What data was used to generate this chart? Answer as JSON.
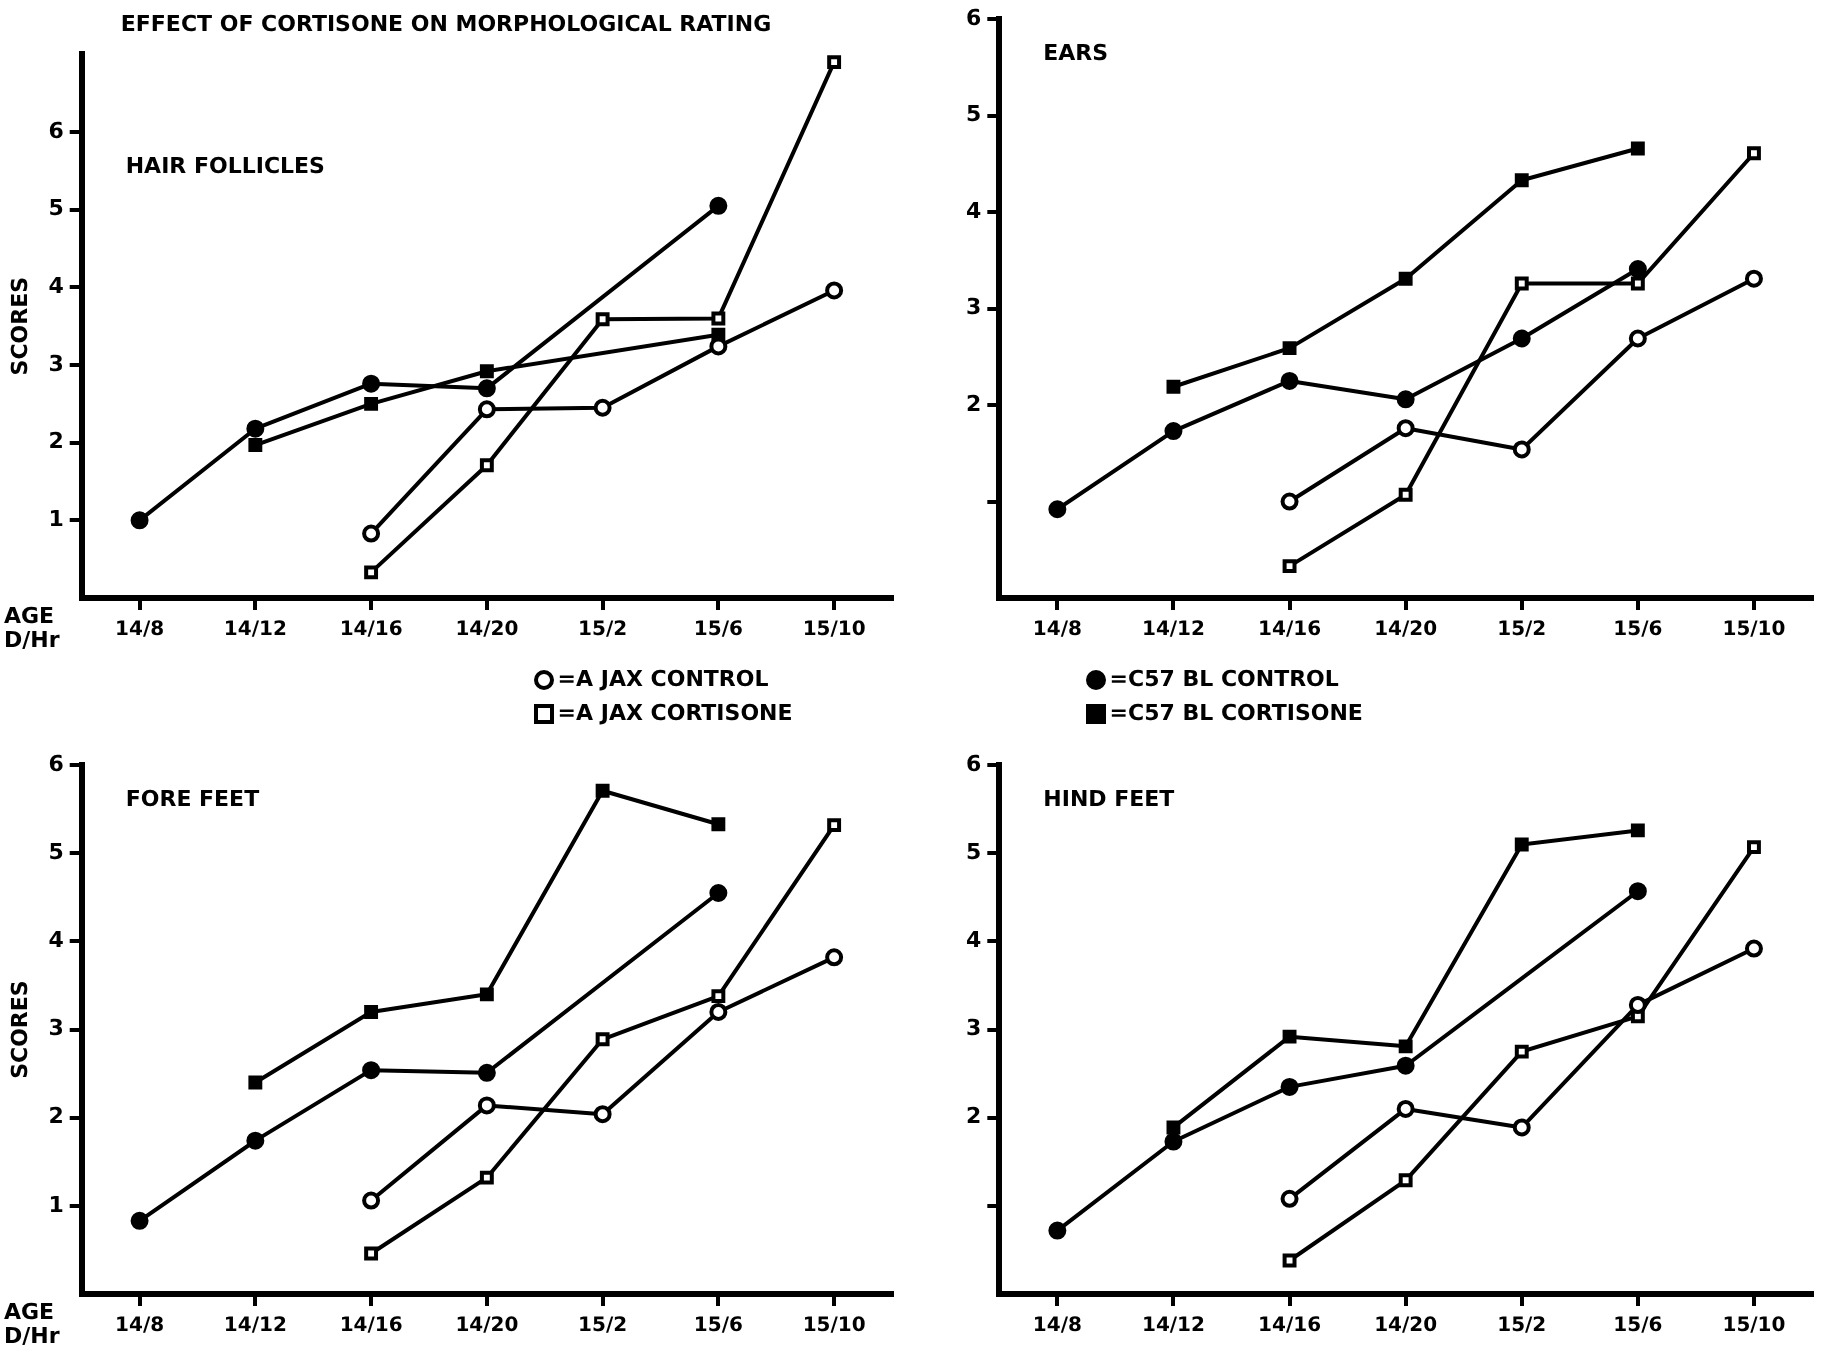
{
  "chart_data": [
    {
      "type": "line",
      "title": "EFFECT OF CORTISONE ON MORPHOLOGICAL RATING",
      "subtitle": "HAIR FOLLICLES",
      "xlabel": "AGE D/Hr",
      "ylabel": "SCORES",
      "categories": [
        "14/8",
        "14/12",
        "14/16",
        "14/20",
        "15/2",
        "15/6",
        "15/10"
      ],
      "ylim": [
        0,
        7
      ],
      "yticks": [
        1,
        2,
        3,
        4,
        5,
        6
      ],
      "grid": false,
      "legend": false,
      "series": [
        {
          "color": "#000000",
          "marker": "circle",
          "values": [
            null,
            null,
            0.83,
            2.43,
            2.45,
            3.24,
            3.96
          ]
        },
        {
          "color": "#000000",
          "marker": "square",
          "values": [
            null,
            null,
            0.33,
            1.71,
            3.59,
            3.6,
            6.9
          ]
        },
        {
          "color": "#000000",
          "marker": "circle",
          "values": [
            1.0,
            2.18,
            2.76,
            2.7,
            null,
            5.05,
            null
          ]
        },
        {
          "color": "#000000",
          "marker": "square",
          "values": [
            null,
            1.97,
            2.5,
            2.92,
            null,
            3.39,
            null
          ]
        }
      ]
    },
    {
      "type": "line",
      "subtitle": "EARS",
      "categories": [
        "14/8",
        "14/12",
        "14/16",
        "14/20",
        "15/2",
        "15/6",
        "15/10"
      ],
      "ylim": [
        0,
        6
      ],
      "yticks": [
        {
          "value": 1,
          "label": null
        },
        2,
        3,
        4,
        5,
        6
      ],
      "grid": false,
      "legend": false,
      "series": [
        {
          "color": "#000000",
          "marker": "circle",
          "values": [
            null,
            null,
            1.0,
            1.76,
            1.54,
            2.69,
            3.31
          ]
        },
        {
          "color": "#000000",
          "marker": "square",
          "values": [
            null,
            null,
            0.33,
            1.07,
            3.26,
            3.26,
            4.61
          ]
        },
        {
          "color": "#000000",
          "marker": "circle",
          "values": [
            0.92,
            1.73,
            2.25,
            2.06,
            2.69,
            3.41,
            null
          ]
        },
        {
          "color": "#000000",
          "marker": "square",
          "values": [
            null,
            2.19,
            2.59,
            3.31,
            4.33,
            4.66,
            null
          ]
        }
      ]
    },
    {
      "type": "line",
      "subtitle": "FORE FEET",
      "xlabel": "AGE D/Hr",
      "ylabel": "SCORES",
      "categories": [
        "14/8",
        "14/12",
        "14/16",
        "14/20",
        "15/2",
        "15/6",
        "15/10"
      ],
      "ylim": [
        0,
        6
      ],
      "yticks": [
        1,
        2,
        3,
        4,
        5,
        6
      ],
      "grid": false,
      "legend": "top",
      "series": [
        {
          "name": "=A JAX CONTROL",
          "color": "#000000",
          "marker": "circle",
          "values": [
            null,
            null,
            1.06,
            2.14,
            2.04,
            3.2,
            3.82
          ]
        },
        {
          "name": "=A JAX CORTISONE",
          "color": "#000000",
          "marker": "square",
          "values": [
            null,
            null,
            0.46,
            1.32,
            2.89,
            3.38,
            5.32
          ]
        },
        {
          "name": "=C57 BL CONTROL",
          "color": "#000000",
          "marker": "circle",
          "values": [
            0.83,
            1.74,
            2.54,
            2.51,
            null,
            4.55,
            null
          ]
        },
        {
          "name": "=C57 BL CORTISONE",
          "color": "#000000",
          "marker": "square",
          "values": [
            null,
            2.4,
            3.2,
            3.4,
            5.71,
            5.33,
            null
          ]
        }
      ]
    },
    {
      "type": "line",
      "subtitle": "HIND FEET",
      "categories": [
        "14/8",
        "14/12",
        "14/16",
        "14/20",
        "15/2",
        "15/6",
        "15/10"
      ],
      "ylim": [
        0,
        6
      ],
      "yticks": [
        {
          "value": 1,
          "label": null
        },
        2,
        3,
        4,
        5,
        6
      ],
      "grid": false,
      "legend": false,
      "series": [
        {
          "color": "#000000",
          "marker": "circle",
          "values": [
            null,
            null,
            1.08,
            2.1,
            1.89,
            3.28,
            3.92
          ]
        },
        {
          "color": "#000000",
          "marker": "square",
          "values": [
            null,
            null,
            0.38,
            1.29,
            2.75,
            3.15,
            5.07
          ]
        },
        {
          "color": "#000000",
          "marker": "circle",
          "values": [
            0.72,
            1.73,
            2.35,
            2.59,
            null,
            4.57,
            null
          ]
        },
        {
          "color": "#000000",
          "marker": "square",
          "values": [
            null,
            1.89,
            2.92,
            2.81,
            5.1,
            5.26,
            null
          ]
        }
      ]
    }
  ]
}
